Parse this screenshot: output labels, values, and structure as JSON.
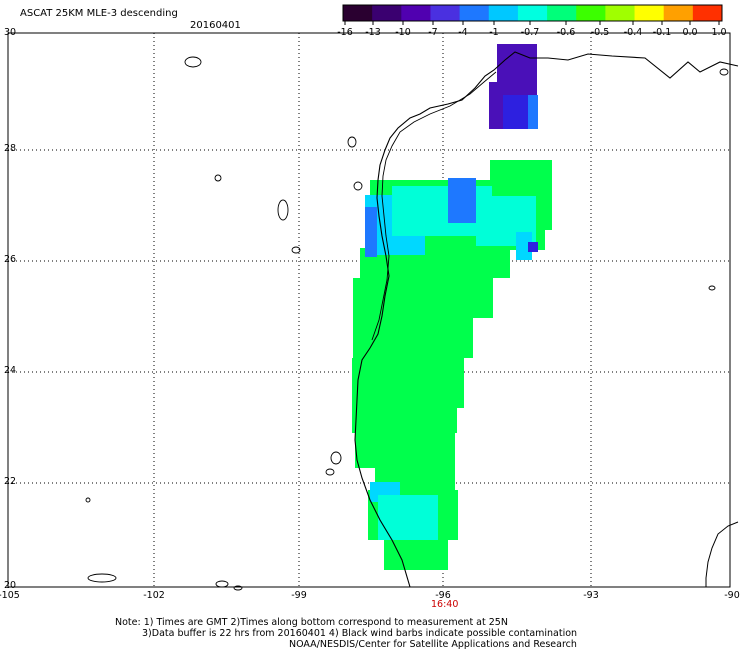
{
  "header": {
    "title": "ASCAT 25KM MLE-3 descending",
    "date": "20160401"
  },
  "colorbar": {
    "labels": [
      "-16",
      "-13",
      "-10",
      "-7",
      "-4",
      "-1",
      "-0.7",
      "-0.6",
      "-0.5",
      "-0.4",
      "-0.1",
      "0.0",
      "1.0"
    ],
    "colors": [
      "#2a0030",
      "#3a0070",
      "#5000b0",
      "#4a30e0",
      "#1e78ff",
      "#00c8ff",
      "#00ffe0",
      "#00ff7a",
      "#3cff00",
      "#a0ff00",
      "#ffff00",
      "#ffa000",
      "#ff3000"
    ]
  },
  "axes": {
    "lat_labels": [
      "30",
      "28",
      "26",
      "24",
      "22",
      "20"
    ],
    "lon_labels": [
      "-105",
      "-102",
      "-99",
      "-96",
      "-93",
      "-90"
    ],
    "time_label": "16:40",
    "time_color": "#cc0000"
  },
  "notes": {
    "line1": "Note: 1) Times are GMT 2)Times along bottom correspond to measurement at 25N",
    "line2": "3)Data buffer is 22 hrs from 20160401 4) Black wind barbs indicate possible contamination",
    "line3": "NOAA/NESDIS/Center for Satellite Applications and Research"
  },
  "palette": {
    "green": "#00ff4c",
    "cyan": "#00ffd8",
    "light_blue": "#00d8ff",
    "blue": "#1e78ff",
    "deep_blue": "#2d20e0",
    "purple": "#4a10b8"
  }
}
